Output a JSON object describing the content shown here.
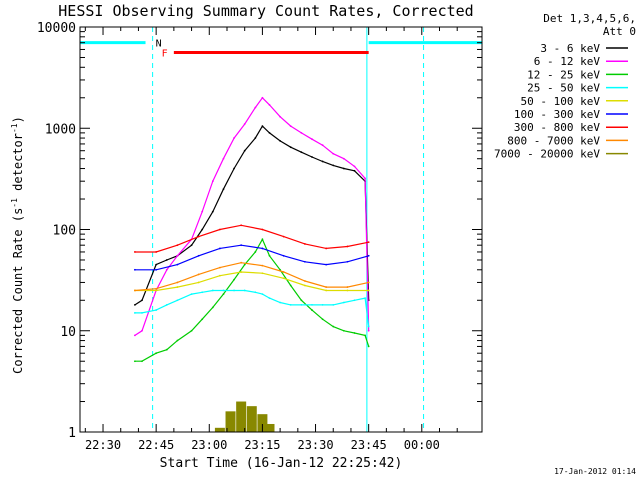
{
  "chart_data": {
    "type": "line",
    "title": "HESSI Observing Summary Count Rates, Corrected",
    "xlabel": "Start Time (16-Jan-12 22:25:42)",
    "ylabel_parts": [
      "Corrected Count Rate (s",
      "-1",
      " detector",
      "-1",
      ")"
    ],
    "y_scale": "log",
    "ylim": [
      1,
      10000
    ],
    "xlim_minutes_after_2225": [
      -1.5,
      112
    ],
    "x_ticks": [
      {
        "label": "22:30",
        "min": 5
      },
      {
        "label": "22:45",
        "min": 20
      },
      {
        "label": "23:00",
        "min": 35
      },
      {
        "label": "23:15",
        "min": 50
      },
      {
        "label": "23:30",
        "min": 65
      },
      {
        "label": "23:45",
        "min": 80
      },
      {
        "label": "00:00",
        "min": 95
      }
    ],
    "y_ticks": [
      {
        "label": "1",
        "v": 1
      },
      {
        "label": "10",
        "v": 10
      },
      {
        "label": "100",
        "v": 100
      },
      {
        "label": "1000",
        "v": 1000
      },
      {
        "label": "10000",
        "v": 10000
      }
    ],
    "legend_header": [
      "Det 1,3,4,5,6,",
      "Att 0"
    ],
    "legend_position": "right",
    "series": [
      {
        "name": "3 - 6 keV",
        "color": "#000000",
        "x": [
          14,
          16,
          20,
          23,
          26,
          30,
          33,
          36,
          39,
          42,
          45,
          48,
          50,
          52,
          55,
          58,
          61,
          64,
          67,
          70,
          73,
          76,
          79,
          80
        ],
        "y": [
          18,
          20,
          45,
          50,
          55,
          70,
          100,
          150,
          250,
          400,
          600,
          800,
          1050,
          900,
          750,
          650,
          580,
          520,
          470,
          430,
          400,
          380,
          300,
          20
        ]
      },
      {
        "name": "6 - 12 keV",
        "color": "#ff00ff",
        "x": [
          14,
          16,
          20,
          23,
          26,
          30,
          33,
          36,
          39,
          42,
          45,
          48,
          50,
          52,
          55,
          58,
          61,
          64,
          67,
          70,
          73,
          76,
          79,
          80
        ],
        "y": [
          9,
          10,
          25,
          40,
          55,
          80,
          150,
          300,
          500,
          800,
          1100,
          1600,
          2000,
          1700,
          1300,
          1050,
          900,
          780,
          680,
          560,
          500,
          420,
          320,
          10
        ]
      },
      {
        "name": "12 - 25 keV",
        "color": "#00cc00",
        "x": [
          14,
          16,
          20,
          23,
          26,
          30,
          33,
          36,
          39,
          42,
          45,
          48,
          50,
          52,
          55,
          58,
          61,
          64,
          67,
          70,
          73,
          76,
          79,
          80
        ],
        "y": [
          5,
          5,
          6,
          6.5,
          8,
          10,
          13,
          17,
          23,
          32,
          45,
          60,
          80,
          55,
          40,
          28,
          20,
          16,
          13,
          11,
          10,
          9.5,
          9,
          7
        ]
      },
      {
        "name": "25 - 50 keV",
        "color": "#00ffff",
        "x": [
          14,
          16,
          20,
          23,
          26,
          30,
          33,
          36,
          39,
          42,
          45,
          48,
          50,
          52,
          55,
          58,
          61,
          64,
          67,
          70,
          73,
          76,
          79,
          80
        ],
        "y": [
          15,
          15,
          16,
          18,
          20,
          23,
          24,
          25,
          25,
          25,
          25,
          24,
          23,
          21,
          19,
          18,
          18,
          18,
          18,
          18,
          19,
          20,
          21,
          11
        ]
      },
      {
        "name": "50 - 100 keV",
        "color": "#dddd00",
        "x": [
          14,
          20,
          26,
          32,
          38,
          44,
          50,
          56,
          62,
          68,
          74,
          80
        ],
        "y": [
          25,
          25,
          27,
          30,
          35,
          38,
          37,
          33,
          28,
          25,
          25,
          25
        ]
      },
      {
        "name": "100 - 300 keV",
        "color": "#0000ff",
        "x": [
          14,
          20,
          26,
          32,
          38,
          44,
          50,
          56,
          62,
          68,
          74,
          80
        ],
        "y": [
          40,
          40,
          45,
          55,
          65,
          70,
          65,
          55,
          48,
          45,
          48,
          55
        ]
      },
      {
        "name": "300 - 800 keV",
        "color": "#ff0000",
        "x": [
          14,
          20,
          26,
          32,
          38,
          44,
          50,
          56,
          62,
          68,
          74,
          80
        ],
        "y": [
          60,
          60,
          70,
          85,
          100,
          110,
          100,
          85,
          72,
          65,
          68,
          75
        ]
      },
      {
        "name": "800 - 7000 keV",
        "color": "#ff8800",
        "x": [
          14,
          20,
          26,
          32,
          38,
          44,
          50,
          56,
          62,
          68,
          74,
          80
        ],
        "y": [
          25,
          26,
          30,
          36,
          42,
          47,
          44,
          38,
          31,
          27,
          27,
          30
        ]
      },
      {
        "name": "7000 - 20000 keV",
        "color": "#888800",
        "x": [
          38,
          41,
          44,
          47,
          50,
          52
        ],
        "y": [
          1.1,
          1.6,
          2,
          1.8,
          1.5,
          1.2
        ]
      }
    ],
    "attenuator_spans": [
      {
        "label": "N",
        "color": "#00ffff",
        "start": -1.5,
        "end": 17,
        "y": 7000
      },
      {
        "label": "N",
        "color": "#00ffff",
        "start": 80,
        "end": 112,
        "y": 7000
      },
      {
        "label": "F",
        "color": "#ff0000",
        "start": 25,
        "end": 80,
        "y": 5600
      }
    ],
    "vlines": [
      {
        "min": 19,
        "color": "#00ffff",
        "style": "dashed"
      },
      {
        "min": 79.5,
        "color": "#00ffff",
        "style": "solid"
      },
      {
        "min": 95.5,
        "color": "#00ffff",
        "style": "dashed"
      }
    ],
    "grid": false
  },
  "footer_date": "17-Jan-2012 01:14"
}
